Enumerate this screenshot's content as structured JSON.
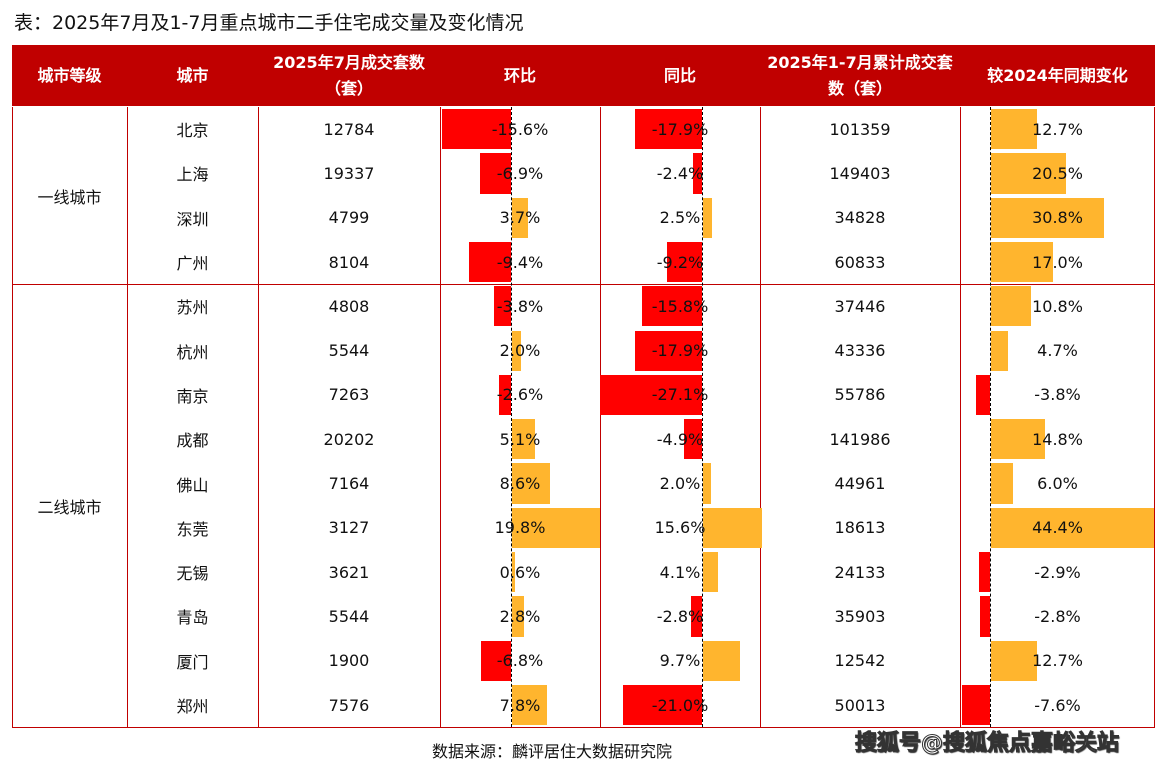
{
  "title": "表：2025年7月及1-7月重点城市二手住宅成交量及变化情况",
  "colors": {
    "header": "#C00000",
    "negative": "#FF0000",
    "positive": "#FFB52E"
  },
  "chart_data": {
    "type": "table",
    "columns": [
      "城市等级",
      "城市",
      "2025年7月成交套数（套）",
      "环比",
      "同比",
      "2025年1-7月累计成交套数（套）",
      "较2024年同期变化"
    ],
    "groups": [
      {
        "tier": "一线城市",
        "rows": [
          {
            "city": "北京",
            "jul": "12784",
            "mom": -15.6,
            "yoy": -17.9,
            "ytd": "101359",
            "ytd_chg": 12.7
          },
          {
            "city": "上海",
            "jul": "19337",
            "mom": -6.9,
            "yoy": -2.4,
            "ytd": "149403",
            "ytd_chg": 20.5
          },
          {
            "city": "深圳",
            "jul": "4799",
            "mom": 3.7,
            "yoy": 2.5,
            "ytd": "34828",
            "ytd_chg": 30.8
          },
          {
            "city": "广州",
            "jul": "8104",
            "mom": -9.4,
            "yoy": -9.2,
            "ytd": "60833",
            "ytd_chg": 17.0
          }
        ]
      },
      {
        "tier": "二线城市",
        "rows": [
          {
            "city": "苏州",
            "jul": "4808",
            "mom": -3.8,
            "yoy": -15.8,
            "ytd": "37446",
            "ytd_chg": 10.8
          },
          {
            "city": "杭州",
            "jul": "5544",
            "mom": 2.0,
            "yoy": -17.9,
            "ytd": "43336",
            "ytd_chg": 4.7
          },
          {
            "city": "南京",
            "jul": "7263",
            "mom": -2.6,
            "yoy": -27.1,
            "ytd": "55786",
            "ytd_chg": -3.8
          },
          {
            "city": "成都",
            "jul": "20202",
            "mom": 5.1,
            "yoy": -4.9,
            "ytd": "141986",
            "ytd_chg": 14.8
          },
          {
            "city": "佛山",
            "jul": "7164",
            "mom": 8.6,
            "yoy": 2.0,
            "ytd": "44961",
            "ytd_chg": 6.0
          },
          {
            "city": "东莞",
            "jul": "3127",
            "mom": 19.8,
            "yoy": 15.6,
            "ytd": "18613",
            "ytd_chg": 44.4
          },
          {
            "city": "无锡",
            "jul": "3621",
            "mom": 0.6,
            "yoy": 4.1,
            "ytd": "24133",
            "ytd_chg": -2.9
          },
          {
            "city": "青岛",
            "jul": "5544",
            "mom": 2.8,
            "yoy": -2.8,
            "ytd": "35903",
            "ytd_chg": -2.8
          },
          {
            "city": "厦门",
            "jul": "1900",
            "mom": -6.8,
            "yoy": 9.7,
            "ytd": "12542",
            "ytd_chg": 12.7
          },
          {
            "city": "郑州",
            "jul": "7576",
            "mom": 7.8,
            "yoy": -21.0,
            "ytd": "50013",
            "ytd_chg": -7.6
          }
        ]
      }
    ]
  },
  "source": "数据来源：麟评居住大数据研究院",
  "watermark": "搜狐号@搜狐焦点嘉峪关站"
}
